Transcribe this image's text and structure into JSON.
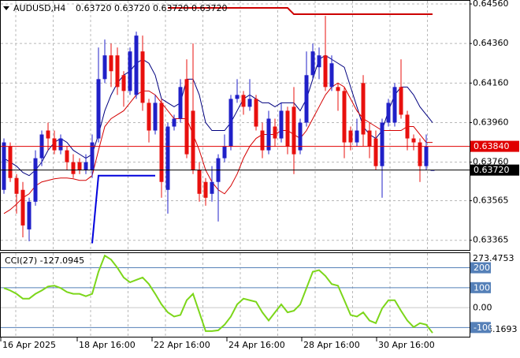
{
  "chart_data": {
    "type": "candlestick",
    "header": {
      "symbol": "AUDUSD,H4",
      "quote": [
        "0.63720",
        "0.63720",
        "0.63720",
        "0.63720"
      ]
    },
    "up_color": "#2020c8",
    "down_color": "#e8100e",
    "grid": true,
    "ylim": [
      0.63316,
      0.6458
    ],
    "yticks": [
      {
        "value": 0.6456,
        "label": "0.64560"
      },
      {
        "value": 0.6436,
        "label": "0.64360"
      },
      {
        "value": 0.6416,
        "label": "0.64160"
      },
      {
        "value": 0.6396,
        "label": "0.63960"
      },
      {
        "value": 0.6376,
        "label": "0.63760"
      },
      0.63565,
      0.63365
    ],
    "xlabels": [
      "16 Apr 2025",
      "18 Apr 16:00",
      "22 Apr 16:00",
      "24 Apr 16:00",
      "28 Apr 16:00",
      "30 Apr 16:00"
    ],
    "open": [
      0.6362,
      0.6384,
      0.6368,
      0.6362,
      0.6342,
      0.6356,
      0.6378,
      0.6392,
      0.6388,
      0.6382,
      0.6382,
      0.6376,
      0.6376,
      0.6372,
      0.6372,
      0.6388,
      0.6418,
      0.643,
      0.643,
      0.642,
      0.6412,
      0.641,
      0.6432,
      0.6406,
      0.6392,
      0.6406,
      0.6362,
      0.6394,
      0.6398,
      0.6418,
      0.6402,
      0.6372,
      0.6366,
      0.636,
      0.6366,
      0.6378,
      0.6384,
      0.6408,
      0.641,
      0.6404,
      0.6408,
      0.6392,
      0.6382,
      0.6394,
      0.6388,
      0.6402,
      0.6404,
      0.6382,
      0.6396,
      0.642,
      0.6424,
      0.643,
      0.6414,
      0.6414,
      0.6412,
      0.6392,
      0.6386,
      0.6416,
      0.6392,
      0.6388,
      0.6374,
      0.6396,
      0.6396,
      0.6414,
      0.64,
      0.6388,
      0.6386,
      0.6374,
      0.6372
    ],
    "high": [
      0.6388,
      0.6386,
      0.637,
      0.6366,
      0.6358,
      0.6382,
      0.6392,
      0.6396,
      0.6392,
      0.639,
      0.6384,
      0.638,
      0.6378,
      0.638,
      0.639,
      0.6434,
      0.6438,
      0.6436,
      0.6434,
      0.6422,
      0.6434,
      0.6442,
      0.644,
      0.6408,
      0.641,
      0.6408,
      0.6396,
      0.64,
      0.6418,
      0.6428,
      0.6436,
      0.6376,
      0.6368,
      0.6374,
      0.638,
      0.639,
      0.641,
      0.6418,
      0.6412,
      0.6418,
      0.641,
      0.6396,
      0.6402,
      0.6398,
      0.6406,
      0.6404,
      0.6414,
      0.6398,
      0.6432,
      0.6436,
      0.6434,
      0.645,
      0.643,
      0.6416,
      0.6414,
      0.6394,
      0.6398,
      0.642,
      0.6396,
      0.6392,
      0.6398,
      0.6408,
      0.6416,
      0.6428,
      0.6402,
      0.639,
      0.6388,
      0.639,
      0.6372
    ],
    "low": [
      0.636,
      0.6366,
      0.635,
      0.6338,
      0.6336,
      0.6354,
      0.6374,
      0.6382,
      0.638,
      0.638,
      0.6372,
      0.6368,
      0.637,
      0.637,
      0.6368,
      0.6386,
      0.6416,
      0.6414,
      0.641,
      0.6404,
      0.641,
      0.6408,
      0.6402,
      0.6386,
      0.639,
      0.6358,
      0.635,
      0.6392,
      0.6396,
      0.6378,
      0.637,
      0.6356,
      0.6354,
      0.6356,
      0.6346,
      0.6376,
      0.6382,
      0.6406,
      0.64,
      0.6402,
      0.6392,
      0.6378,
      0.638,
      0.6384,
      0.6386,
      0.638,
      0.637,
      0.638,
      0.6394,
      0.6418,
      0.6418,
      0.6412,
      0.6412,
      0.6402,
      0.6378,
      0.6382,
      0.6384,
      0.6384,
      0.6378,
      0.6372,
      0.6358,
      0.6394,
      0.6394,
      0.6398,
      0.6382,
      0.6382,
      0.6366,
      0.6372,
      0.6372
    ],
    "close": [
      0.6386,
      0.6368,
      0.636,
      0.6344,
      0.6356,
      0.6378,
      0.639,
      0.6388,
      0.6382,
      0.6388,
      0.6376,
      0.637,
      0.6372,
      0.6376,
      0.6386,
      0.6418,
      0.643,
      0.6422,
      0.6414,
      0.6412,
      0.6432,
      0.644,
      0.6406,
      0.6392,
      0.6406,
      0.6366,
      0.6394,
      0.6398,
      0.6414,
      0.638,
      0.6372,
      0.636,
      0.6358,
      0.6366,
      0.6378,
      0.6384,
      0.6408,
      0.641,
      0.6404,
      0.6408,
      0.6394,
      0.6382,
      0.6398,
      0.6388,
      0.6402,
      0.6384,
      0.638,
      0.6396,
      0.642,
      0.6432,
      0.643,
      0.6414,
      0.6426,
      0.6412,
      0.6386,
      0.6386,
      0.6392,
      0.639,
      0.6384,
      0.6374,
      0.6396,
      0.6406,
      0.6414,
      0.64,
      0.6388,
      0.6386,
      0.6374,
      0.6384,
      0.6372
    ],
    "ma": [
      {
        "color": "#00007f",
        "values": [
          0.6378,
          0.6376,
          0.6374,
          0.63708,
          0.63692,
          0.6372,
          0.6376,
          0.6382,
          0.6386,
          0.6388,
          0.6386,
          0.6382,
          0.638,
          0.6378,
          0.638,
          0.639,
          0.6402,
          0.641,
          0.6416,
          0.642,
          0.6422,
          0.6426,
          0.6428,
          0.6426,
          0.642,
          0.6408,
          0.6406,
          0.6404,
          0.6406,
          0.6418,
          0.6418,
          0.641,
          0.6396,
          0.6392,
          0.6392,
          0.6392,
          0.6396,
          0.6402,
          0.6408,
          0.641,
          0.6408,
          0.6406,
          0.6406,
          0.6404,
          0.6406,
          0.6406,
          0.6406,
          0.6402,
          0.6408,
          0.6418,
          0.6428,
          0.643,
          0.6428,
          0.6426,
          0.6424,
          0.6414,
          0.6404,
          0.6394,
          0.639,
          0.6388,
          0.6392,
          0.6402,
          0.641,
          0.6414,
          0.6414,
          0.641,
          0.6404,
          0.64,
          0.6396
        ]
      },
      {
        "color": "#d40000",
        "values": [
          0.635,
          0.6352,
          0.63548,
          0.6358,
          0.636,
          0.6364,
          0.6366,
          0.63668,
          0.63676,
          0.6368,
          0.6368,
          0.63676,
          0.63668,
          0.63668,
          0.63692,
          0.6382,
          0.6394,
          0.6398,
          0.64,
          0.6402,
          0.6406,
          0.641,
          0.6412,
          0.6412,
          0.641,
          0.6406,
          0.6402,
          0.6398,
          0.6398,
          0.6398,
          0.639,
          0.6382,
          0.6372,
          0.6366,
          0.6362,
          0.636,
          0.6364,
          0.637,
          0.6378,
          0.6384,
          0.6388,
          0.639,
          0.639,
          0.639,
          0.6392,
          0.6392,
          0.639,
          0.6388,
          0.6392,
          0.6398,
          0.6404,
          0.641,
          0.6414,
          0.6416,
          0.6414,
          0.6408,
          0.6402,
          0.6398,
          0.6396,
          0.6394,
          0.6392,
          0.6392,
          0.6392,
          0.6392,
          0.6394,
          0.6394,
          0.639,
          0.6386,
          0.6386
        ]
      }
    ],
    "levels": [
      {
        "color": "#0000dd",
        "values": [
          null,
          null,
          null,
          null,
          null,
          null,
          null,
          null,
          null,
          null,
          null,
          null,
          null,
          null,
          0.6335,
          0.63692,
          0.63692,
          0.63692,
          0.63692,
          0.63692,
          0.63692,
          0.63692,
          0.63692,
          0.63692,
          0.63692,
          null,
          null,
          null,
          null,
          null,
          null,
          null,
          null,
          null,
          null,
          null,
          null,
          null,
          null,
          null,
          null,
          null,
          null,
          null,
          null,
          null,
          null,
          null,
          null,
          null,
          null,
          null,
          null,
          null,
          null,
          null,
          null,
          null,
          null,
          null,
          null,
          null,
          null,
          null,
          null,
          null,
          null,
          null,
          null
        ]
      },
      {
        "color": "#cc0000",
        "values": [
          null,
          null,
          null,
          null,
          null,
          null,
          null,
          null,
          null,
          null,
          null,
          null,
          null,
          null,
          null,
          null,
          null,
          null,
          null,
          null,
          null,
          null,
          null,
          null,
          null,
          null,
          0.6454,
          0.6454,
          0.6454,
          0.6454,
          0.6454,
          0.6454,
          0.6454,
          0.6454,
          0.6454,
          0.6454,
          0.6454,
          0.6454,
          0.6454,
          0.6454,
          0.6454,
          0.6454,
          0.6454,
          0.6454,
          0.6454,
          0.6454,
          0.64508,
          0.64508,
          0.64508,
          0.64508,
          0.64508,
          0.64508,
          0.64508,
          0.64508,
          0.64508,
          0.64508,
          0.64508,
          0.64508,
          0.64508,
          0.64508,
          0.64508,
          0.64508,
          0.64508,
          0.64508,
          0.64508,
          0.64508,
          0.64508,
          0.64508,
          0.64508
        ]
      }
    ],
    "ask": {
      "value": 0.6384,
      "label": "0.63840",
      "color": "#e00000"
    },
    "bid": {
      "value": 0.6372,
      "label": "0.63720",
      "color": "#000000"
    },
    "indicator": {
      "type": "line",
      "title": "CCI(27) -127.0945",
      "color": "#7cd61a",
      "level_color": "#5580b8",
      "ylim": [
        -146.1693,
        273.4753
      ],
      "yticks": [
        200,
        100,
        {
          "value": 0,
          "label": "0.00"
        },
        -100
      ],
      "values": [
        98,
        86,
        69,
        45,
        45,
        69,
        86,
        106,
        110,
        98,
        78,
        69,
        69,
        57,
        69,
        180,
        261,
        241,
        200,
        151,
        127,
        139,
        151,
        118,
        69,
        16,
        -24,
        -45,
        -37,
        37,
        69,
        -24,
        -118,
        -118,
        -114,
        -86,
        -45,
        16,
        45,
        37,
        29,
        -24,
        -65,
        -24,
        16,
        -24,
        -16,
        16,
        98,
        180,
        188,
        159,
        118,
        110,
        37,
        -37,
        -45,
        -24,
        -65,
        -78,
        -4,
        37,
        37,
        -16,
        -65,
        -98,
        -78,
        -86,
        -127.0945
      ]
    }
  }
}
